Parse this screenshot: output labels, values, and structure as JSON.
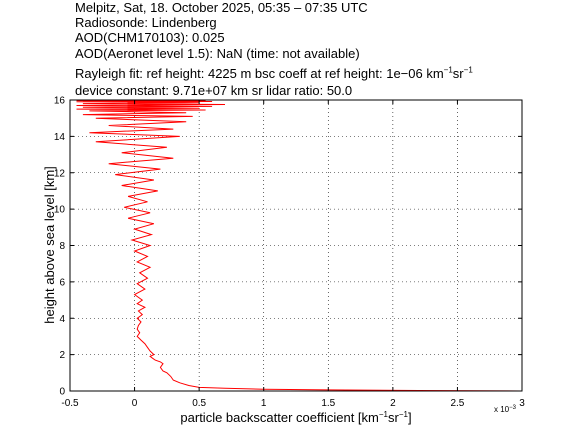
{
  "header": {
    "title": "Melpitz, Sat, 18. October 2025, 05:35 – 07:35 UTC",
    "radiosonde": "Radiosonde: Lindenberg",
    "aod_chm": "AOD(CHM170103): 0.025",
    "aod_aeronet": "AOD(Aeronet level 1.5): NaN   (time: not available)",
    "rayleigh_fit": "Rayleigh fit:     ref height: 4225 m     bsc coeff at ref height: 1e−06 km",
    "rayleigh_unit_sup1": "−1",
    "rayleigh_unit_mid": "sr",
    "rayleigh_unit_sup2": "−1",
    "device_constant": "device constant: 9.71e+07 km sr     lidar ratio: 50.0"
  },
  "chart_data": {
    "type": "line",
    "xlabel_main": "particle backscatter coefficient [km",
    "xlabel_sup1": "−1",
    "xlabel_mid": "sr",
    "xlabel_sup2": "−1",
    "xlabel_end": "]",
    "x_exponent": "x 10",
    "x_exponent_power": "−3",
    "ylabel": "height above sea level [km]",
    "xlim": [
      -0.5,
      3
    ],
    "ylim": [
      0,
      16
    ],
    "xticks": [
      "-0.5",
      "0",
      "0.5",
      "1",
      "1.5",
      "2",
      "2.5",
      "3"
    ],
    "yticks": [
      "0",
      "2",
      "4",
      "6",
      "8",
      "10",
      "12",
      "14",
      "16"
    ],
    "grid": true,
    "series": [
      {
        "color": "#ff0000",
        "x": [
          3.0,
          2.2,
          1.5,
          1.0,
          0.7,
          0.5,
          0.42,
          0.35,
          0.3,
          0.28,
          0.25,
          0.22,
          0.2,
          0.22,
          0.2,
          0.16,
          0.14,
          0.12,
          0.15,
          0.12,
          0.1,
          0.08,
          0.05,
          0.02,
          0.04,
          0.02,
          0.03,
          0.05,
          0.02,
          0.06,
          0.03,
          0.08,
          0.02,
          0.06,
          0.0,
          0.08,
          0.02,
          0.1,
          0.04,
          0.12,
          0.02,
          0.1,
          0.0,
          0.12,
          -0.02,
          0.13,
          0.0,
          0.15,
          -0.05,
          0.12,
          -0.08,
          0.1,
          -0.05,
          0.18,
          -0.1,
          0.15,
          -0.15,
          0.2,
          -0.2,
          0.3,
          -0.1,
          0.25,
          -0.3,
          0.35,
          -0.35,
          0.3,
          -0.2,
          0.4,
          -0.3,
          0.45,
          -0.4,
          0.4,
          -0.35,
          0.55,
          -0.45,
          0.5,
          -0.4,
          0.6,
          -0.45,
          0.7,
          -0.4,
          0.5,
          -0.45,
          0.6,
          -0.4,
          0.55,
          -0.45,
          0.45,
          -0.3,
          0.3
        ],
        "y": [
          0.0,
          0.03,
          0.06,
          0.1,
          0.15,
          0.2,
          0.3,
          0.45,
          0.6,
          0.8,
          1.0,
          1.1,
          1.3,
          1.5,
          1.6,
          1.7,
          1.8,
          1.9,
          2.0,
          2.2,
          2.4,
          2.6,
          2.8,
          3.0,
          3.2,
          3.4,
          3.6,
          3.8,
          4.0,
          4.2,
          4.4,
          4.6,
          4.8,
          5.0,
          5.3,
          5.6,
          5.9,
          6.2,
          6.5,
          6.8,
          7.1,
          7.4,
          7.7,
          8.0,
          8.3,
          8.6,
          8.9,
          9.2,
          9.5,
          9.8,
          10.1,
          10.4,
          10.7,
          11.0,
          11.3,
          11.6,
          11.9,
          12.2,
          12.5,
          12.8,
          13.1,
          13.4,
          13.7,
          14.0,
          14.2,
          14.4,
          14.6,
          14.8,
          15.0,
          15.1,
          15.2,
          15.3,
          15.4,
          15.45,
          15.5,
          15.55,
          15.6,
          15.65,
          15.7,
          15.75,
          15.8,
          15.85,
          15.9,
          15.92,
          15.94,
          15.96,
          15.97,
          15.98,
          15.99,
          16.0
        ]
      }
    ]
  }
}
